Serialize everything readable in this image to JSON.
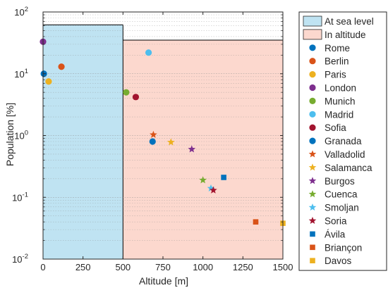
{
  "chart_data": {
    "type": "scatter",
    "xlabel": "Altitude [m]",
    "ylabel": "Population [%]",
    "xlim": [
      0,
      1500
    ],
    "ylim": [
      0.01,
      100
    ],
    "yscale": "log",
    "grid": "on (y-axis major and minor)",
    "legend_placement": "outside-right",
    "x_ticks": [
      "0",
      "250",
      "500",
      "750",
      "1000",
      "1250",
      "1500"
    ],
    "y_ticks": [
      {
        "base": "10",
        "exp": "-2"
      },
      {
        "base": "10",
        "exp": "-1"
      },
      {
        "base": "10",
        "exp": "0"
      },
      {
        "base": "10",
        "exp": "1"
      },
      {
        "base": "10",
        "exp": "2"
      }
    ],
    "regions": [
      {
        "name": "At sea level",
        "x": [
          0,
          500
        ],
        "y_top": 62,
        "color": "#bfe3f2"
      },
      {
        "name": "In altitude",
        "x": [
          500,
          1500
        ],
        "y_top": 35,
        "color": "#fcd8ce"
      }
    ],
    "series": [
      {
        "name": "Rome",
        "marker": "circle",
        "color": "#0072bd",
        "x": 5,
        "y": 10
      },
      {
        "name": "Berlin",
        "marker": "circle",
        "color": "#d95319",
        "x": 115,
        "y": 13
      },
      {
        "name": "Paris",
        "marker": "circle",
        "color": "#edb120",
        "x": 35,
        "y": 7.5
      },
      {
        "name": "London",
        "marker": "circle",
        "color": "#7e2f8e",
        "x": 0,
        "y": 33
      },
      {
        "name": "Munich",
        "marker": "circle",
        "color": "#77ac30",
        "x": 520,
        "y": 5
      },
      {
        "name": "Madrid",
        "marker": "circle",
        "color": "#4dbeee",
        "x": 660,
        "y": 22
      },
      {
        "name": "Sofia",
        "marker": "circle",
        "color": "#a2142f",
        "x": 580,
        "y": 4.2
      },
      {
        "name": "Granada",
        "marker": "circle",
        "color": "#0072bd",
        "x": 685,
        "y": 0.8
      },
      {
        "name": "Valladolid",
        "marker": "star",
        "color": "#d95319",
        "x": 690,
        "y": 1.03
      },
      {
        "name": "Salamanca",
        "marker": "star",
        "color": "#edb120",
        "x": 800,
        "y": 0.78
      },
      {
        "name": "Burgos",
        "marker": "star",
        "color": "#7e2f8e",
        "x": 930,
        "y": 0.6
      },
      {
        "name": "Cuenca",
        "marker": "star",
        "color": "#77ac30",
        "x": 1000,
        "y": 0.19
      },
      {
        "name": "Smoljan",
        "marker": "star",
        "color": "#4dbeee",
        "x": 1050,
        "y": 0.14
      },
      {
        "name": "Soria",
        "marker": "star",
        "color": "#a2142f",
        "x": 1065,
        "y": 0.13
      },
      {
        "name": "Ávila",
        "marker": "square",
        "color": "#0072bd",
        "x": 1130,
        "y": 0.21
      },
      {
        "name": "Briançon",
        "marker": "square",
        "color": "#d95319",
        "x": 1330,
        "y": 0.04
      },
      {
        "name": "Davos",
        "marker": "square",
        "color": "#edb120",
        "x": 1500,
        "y": 0.038
      }
    ]
  }
}
